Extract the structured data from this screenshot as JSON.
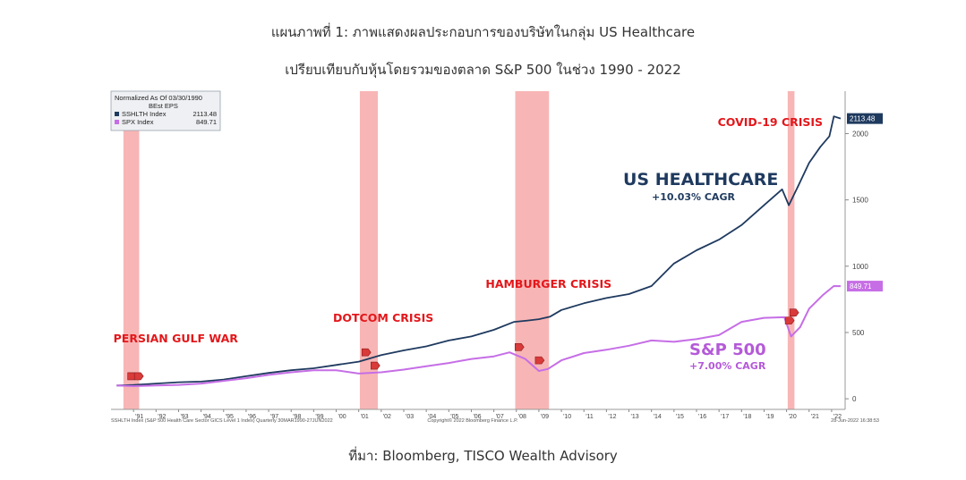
{
  "header": {
    "title_line1": "แผนภาพที่ 1: ภาพแสดงผลประกอบการของบริษัทในกลุ่ม US Healthcare",
    "title_line2": "เปรียบเทียบกับหุ้นโดยรวมของตลาด S&P 500 ในช่วง 1990 - 2022"
  },
  "source": "ที่มา: Bloomberg, TISCO Wealth Advisory",
  "chart_data": {
    "type": "line",
    "legend": {
      "title": "Normalized As Of 03/30/1990",
      "subtitle": "BEst EPS",
      "entries": [
        {
          "name": "SSHLTH Index",
          "value": "2113.48",
          "color": "#1f3a5f"
        },
        {
          "name": "SPX Index",
          "value": "849.71",
          "color": "#c66ee6"
        }
      ],
      "placement": "top-left"
    },
    "x_ticks": [
      "'91",
      "'92",
      "'93",
      "'94",
      "'95",
      "'96",
      "'97",
      "'98",
      "'99",
      "'00",
      "'01",
      "'02",
      "'03",
      "'04",
      "'05",
      "'06",
      "'07",
      "'08",
      "'09",
      "'10",
      "'11",
      "'12",
      "'13",
      "'14",
      "'15",
      "'16",
      "'17",
      "'18",
      "'19",
      "'20",
      "'21",
      "'22"
    ],
    "x_tick_years": [
      1991,
      1992,
      1993,
      1994,
      1995,
      1996,
      1997,
      1998,
      1999,
      2000,
      2001,
      2002,
      2003,
      2004,
      2005,
      2006,
      2007,
      2008,
      2009,
      2010,
      2011,
      2012,
      2013,
      2014,
      2015,
      2016,
      2017,
      2018,
      2019,
      2020,
      2021,
      2022
    ],
    "xlim": [
      1990.0,
      2022.6
    ],
    "y_ticks": [
      0,
      500,
      1000,
      1500,
      2000
    ],
    "ylim": [
      -80,
      2320
    ],
    "y_axis_side": "right",
    "series": [
      {
        "name": "SSHLTH Index",
        "label": "US HEALTHCARE",
        "cagr": "+10.03% CAGR",
        "last_value": "2113.48",
        "color": "#1f3a5f",
        "x": [
          1990.25,
          1991,
          1992,
          1993,
          1994,
          1995,
          1996,
          1997,
          1998,
          1999,
          2000,
          2001,
          2002,
          2003,
          2004,
          2005,
          2006,
          2007,
          2007.9,
          2008.5,
          2009,
          2009.5,
          2010,
          2011,
          2012,
          2013,
          2014,
          2015,
          2016,
          2017,
          2018,
          2019,
          2019.8,
          2020.1,
          2020.5,
          2021,
          2021.5,
          2021.9,
          2022.1,
          2022.4
        ],
        "y": [
          100,
          105,
          115,
          125,
          130,
          145,
          170,
          195,
          215,
          230,
          255,
          280,
          330,
          365,
          395,
          440,
          470,
          520,
          580,
          590,
          600,
          620,
          670,
          720,
          760,
          790,
          850,
          1020,
          1120,
          1200,
          1310,
          1460,
          1580,
          1460,
          1600,
          1780,
          1900,
          1980,
          2130,
          2113.48
        ]
      },
      {
        "name": "SPX Index",
        "label": "S&P 500",
        "cagr": "+7.00% CAGR",
        "last_value": "849.71",
        "color": "#c66ee6",
        "x": [
          1990.25,
          1991,
          1992,
          1993,
          1994,
          1995,
          1996,
          1997,
          1998,
          1999,
          2000,
          2001,
          2002,
          2003,
          2004,
          2005,
          2006,
          2007,
          2007.7,
          2008.4,
          2009,
          2009.4,
          2010,
          2011,
          2012,
          2013,
          2014,
          2015,
          2016,
          2017,
          2018,
          2019,
          2019.9,
          2020.2,
          2020.6,
          2021,
          2021.6,
          2022.1,
          2022.4
        ],
        "y": [
          100,
          95,
          100,
          105,
          115,
          135,
          155,
          180,
          200,
          215,
          215,
          190,
          200,
          220,
          245,
          270,
          300,
          320,
          350,
          300,
          210,
          225,
          290,
          345,
          370,
          400,
          440,
          430,
          450,
          480,
          580,
          610,
          615,
          470,
          540,
          680,
          780,
          850,
          849.71
        ]
      }
    ],
    "recessions": [
      {
        "label": "PERSIAN GULF WAR",
        "start": 1990.55,
        "end": 1991.25
      },
      {
        "label": "DOTCOM CRISIS",
        "start": 2001.05,
        "end": 2001.85
      },
      {
        "label": "HAMBURGER CRISIS",
        "start": 2007.95,
        "end": 2009.45
      },
      {
        "label": "COVID-19 CRISIS",
        "start": 2020.05,
        "end": 2020.35
      }
    ],
    "crisis_markers": [
      {
        "x": 1990.9,
        "y": 170
      },
      {
        "x": 1991.2,
        "y": 170
      },
      {
        "x": 2001.3,
        "y": 350
      },
      {
        "x": 2001.7,
        "y": 250
      },
      {
        "x": 2008.1,
        "y": 390
      },
      {
        "x": 2009.0,
        "y": 290
      },
      {
        "x": 2020.1,
        "y": 590
      },
      {
        "x": 2020.3,
        "y": 650
      }
    ],
    "footer_left": "SSHLTH Index (S&P 500 Health Care Sector GICS Level 1 Index)  Quarterly 30MAR1990-27JUN2022",
    "footer_center": "Copyright© 2022 Bloomberg Finance L.P.",
    "footer_right": "28-Jun-2022 16:38:53",
    "colors": {
      "recession": "#f7a8a8",
      "crisis_text": "#e3171b",
      "marker": "#d93a3a"
    }
  }
}
